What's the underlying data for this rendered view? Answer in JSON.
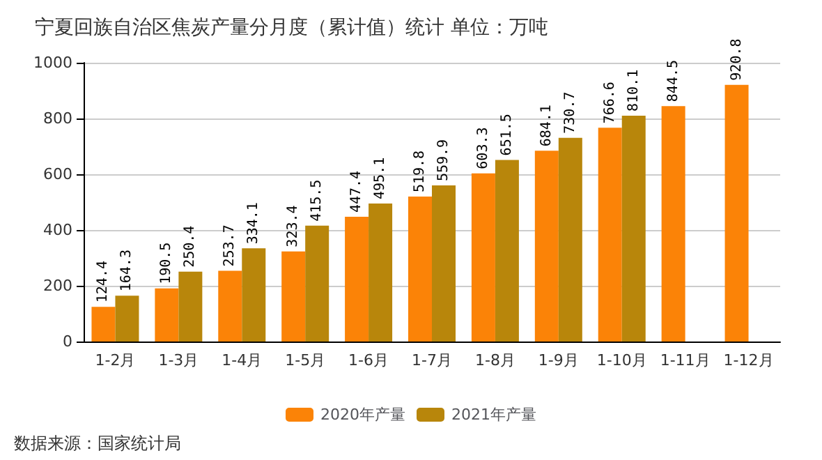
{
  "chart_data": {
    "type": "bar",
    "title": "宁夏回族自治区焦炭产量分月度（累计值）统计 单位：万吨",
    "categories": [
      "1-2月",
      "1-3月",
      "1-4月",
      "1-5月",
      "1-6月",
      "1-7月",
      "1-8月",
      "1-9月",
      "1-10月",
      "1-11月",
      "1-12月"
    ],
    "series": [
      {
        "name": "2020年产量",
        "color": "#fb8307",
        "values": [
          124.4,
          190.5,
          253.7,
          323.4,
          447.4,
          519.8,
          603.3,
          684.1,
          766.6,
          844.5,
          920.8
        ]
      },
      {
        "name": "2021年产量",
        "color": "#b8860b",
        "values": [
          164.3,
          250.4,
          334.1,
          415.5,
          495.1,
          559.9,
          651.5,
          730.7,
          810.1,
          null,
          null
        ]
      }
    ],
    "ylim": [
      0,
      1000
    ],
    "yticks": [
      0,
      200,
      400,
      600,
      800,
      1000
    ],
    "grid": true,
    "legend": "bottom",
    "data_labels": true,
    "annotations": [
      "数据来源：国家统计局"
    ]
  }
}
